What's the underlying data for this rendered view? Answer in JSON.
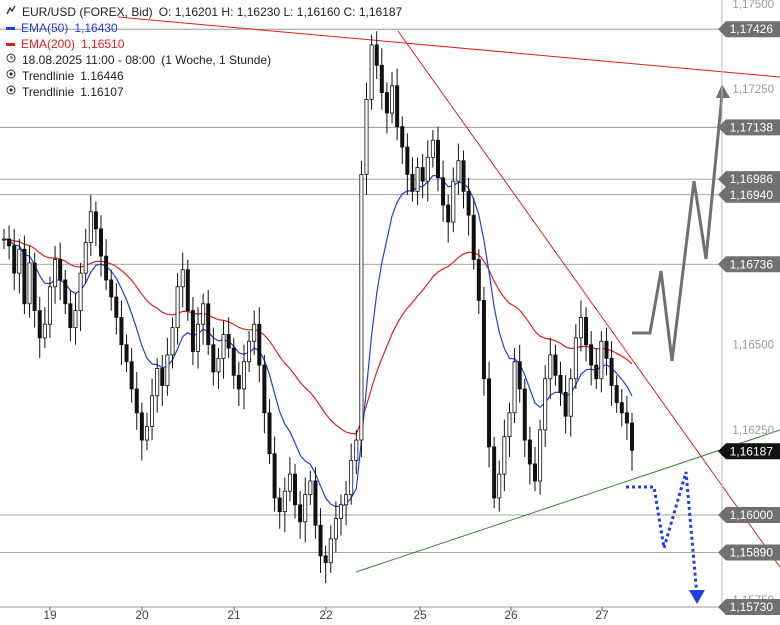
{
  "legend": {
    "symbol_line": "EUR/USD (FOREX, Bid)",
    "ohlc": "O: 1,16201  H: 1,16230  L: 1,16160  C: 1,16187",
    "ema50_label": "EMA(50)",
    "ema50_value": "1,16430",
    "ema200_label": "EMA(200)",
    "ema200_value": "1,16510",
    "period": "18.08.2025 11:00 - 08:00",
    "timeframe": "(1 Woche, 1 Stunde)",
    "trend1_label": "Trendlinie",
    "trend1_value": "1.16446",
    "trend2_label": "Trendlinie",
    "trend2_value": "1.16107"
  },
  "colors": {
    "ema50": "#1f3fe0",
    "ema200": "#e02020",
    "downtrend": "#e02020",
    "uptrend": "#2e8b2e",
    "bullish_path": "#707070",
    "bearish_path": "#1f3fe0",
    "candle": "#111111",
    "price_tag": "#707070",
    "current_tag": "#111111"
  },
  "chart_data": {
    "type": "candlestick",
    "ylim": [
      1.1573,
      1.175
    ],
    "y_ticks": [
      "1,17500",
      "1,17250",
      "1,16500",
      "1,16250",
      "1,15750"
    ],
    "x_ticks": [
      "19",
      "20",
      "21",
      "22",
      "25",
      "26",
      "27"
    ],
    "horizontal_levels": [
      "1,17426",
      "1,17138",
      "1,16986",
      "1,16940",
      "1,16736",
      "1,16000",
      "1,15890"
    ],
    "current_price": "1,16187",
    "target_low": "1,15730",
    "ema50_last": 1.1643,
    "ema200_last": 1.1651,
    "trendline_down": [
      [
        24.6,
        1.17426
      ],
      [
        28.0,
        1.1578
      ]
    ],
    "trendline_up": [
      [
        22.2,
        1.1582
      ],
      [
        28.0,
        1.1625
      ]
    ],
    "scenario_up": [
      [
        27.5,
        1.1652
      ],
      [
        27.7,
        1.1653
      ],
      [
        27.8,
        1.1672
      ],
      [
        27.95,
        1.1645
      ],
      [
        28.4,
        1.1697
      ],
      [
        28.55,
        1.1671
      ],
      [
        28.85,
        1.1725
      ]
    ],
    "scenario_down": [
      [
        27.25,
        1.161
      ],
      [
        27.55,
        1.161
      ],
      [
        27.65,
        1.1595
      ],
      [
        27.75,
        1.1591
      ],
      [
        27.95,
        1.1613
      ],
      [
        28.2,
        1.1578
      ],
      [
        28.35,
        1.1575
      ]
    ]
  }
}
